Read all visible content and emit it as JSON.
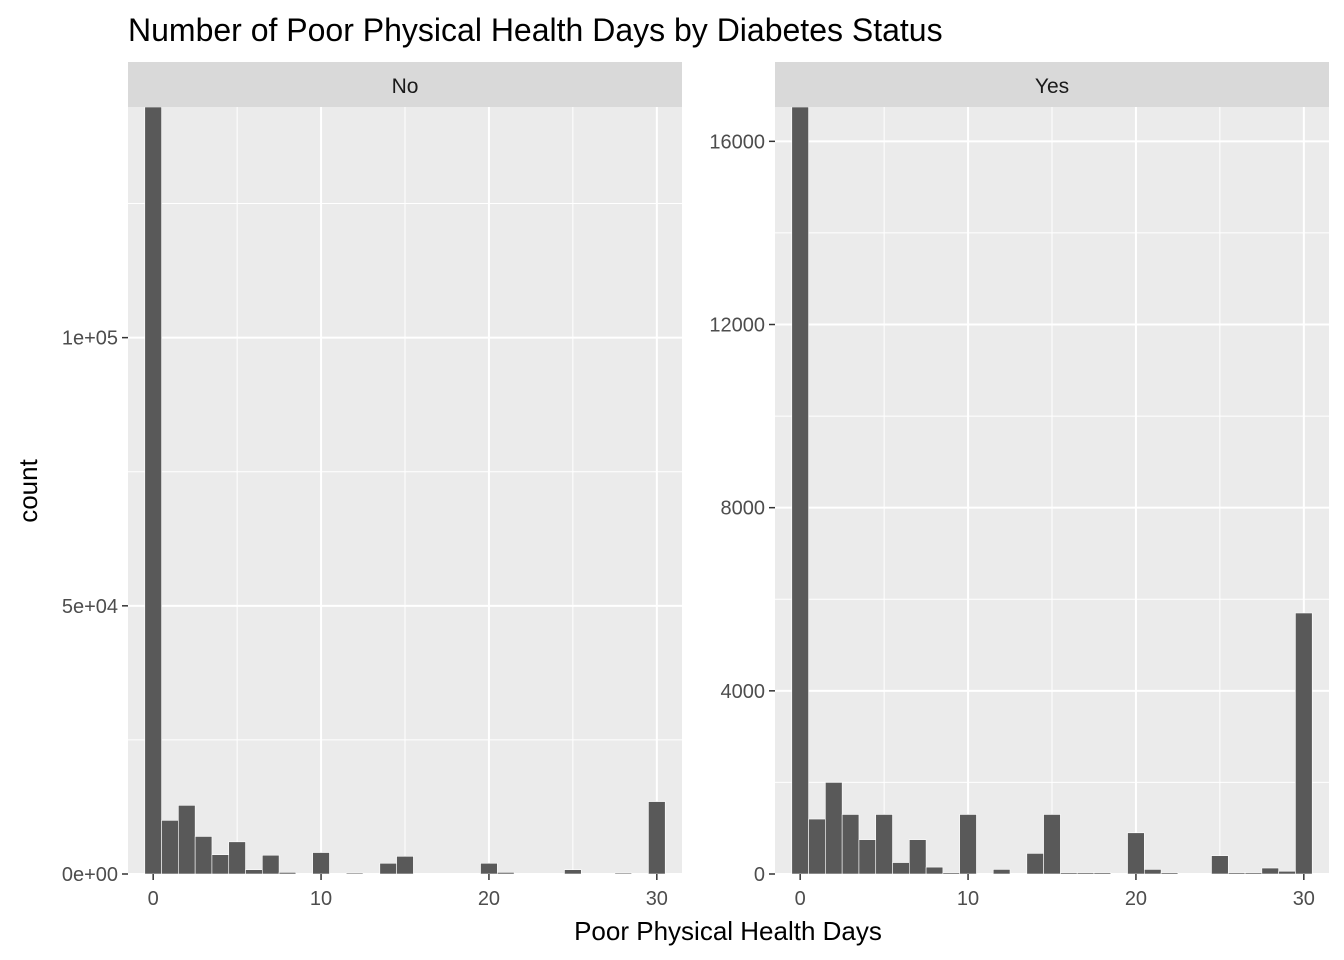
{
  "chart_data": {
    "type": "bar",
    "title": "Number of Poor Physical Health Days by Diabetes Status",
    "xlabel": "Poor Physical Health Days",
    "ylabel": "count",
    "facet_variable": "Diabetes Status",
    "colors": {
      "bar": "#595959",
      "panel_background": "#ebebeb",
      "strip_background": "#d9d9d9",
      "grid": "#ffffff"
    },
    "grid": true,
    "facets": [
      {
        "label": "No",
        "ylim": [
          0,
          143000
        ],
        "xlim": [
          -1.5,
          31.5
        ],
        "x_ticks": [
          0,
          10,
          20,
          30
        ],
        "y_ticks": [
          0,
          50000,
          100000
        ],
        "y_tick_labels": [
          "0e+00",
          "5e+04",
          "1e+05"
        ],
        "x": [
          0,
          1,
          2,
          3,
          4,
          5,
          6,
          7,
          8,
          10,
          12,
          14,
          15,
          20,
          21,
          25,
          28,
          30
        ],
        "values": [
          143000,
          10000,
          12800,
          7000,
          3600,
          6000,
          800,
          3500,
          300,
          4000,
          200,
          2000,
          3300,
          2000,
          300,
          800,
          200,
          13500
        ]
      },
      {
        "label": "Yes",
        "ylim": [
          0,
          16750
        ],
        "xlim": [
          -1.5,
          31.5
        ],
        "x_ticks": [
          0,
          10,
          20,
          30
        ],
        "y_ticks": [
          0,
          4000,
          8000,
          12000,
          16000
        ],
        "y_tick_labels": [
          "0",
          "4000",
          "8000",
          "12000",
          "16000"
        ],
        "x": [
          0,
          1,
          2,
          3,
          4,
          5,
          6,
          7,
          8,
          9,
          10,
          12,
          14,
          15,
          16,
          17,
          18,
          20,
          21,
          22,
          25,
          26,
          27,
          28,
          29,
          30
        ],
        "values": [
          16750,
          1200,
          2000,
          1300,
          750,
          1300,
          250,
          750,
          150,
          30,
          1300,
          100,
          450,
          1300,
          30,
          30,
          30,
          900,
          100,
          30,
          400,
          30,
          30,
          130,
          60,
          5700
        ]
      }
    ]
  }
}
